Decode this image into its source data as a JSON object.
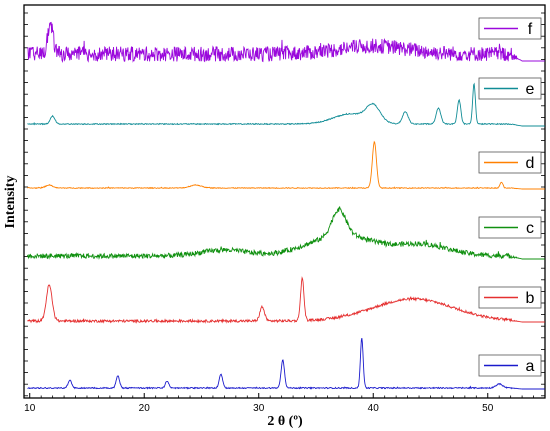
{
  "chart_data": {
    "type": "line",
    "xlabel": "2 θ (º)",
    "ylabel": "Intensity",
    "xlim": [
      9.5,
      55
    ],
    "x_ticks": [
      10,
      20,
      30,
      40,
      50
    ],
    "x_tick_labels": [
      "10",
      "20",
      "30",
      "40",
      "50"
    ],
    "grid": false,
    "legend_placement": "right of each pattern",
    "series": [
      {
        "name": "a",
        "color": "#1a1acc",
        "noise": 1.2,
        "baseline": 2,
        "end": 52,
        "peaks": [
          [
            13.5,
            8,
            0.15
          ],
          [
            17.7,
            12,
            0.15
          ],
          [
            22.0,
            7,
            0.15
          ],
          [
            26.7,
            14,
            0.15
          ],
          [
            32.1,
            28,
            0.15
          ],
          [
            39.0,
            50,
            0.12
          ],
          [
            51.0,
            4,
            0.3
          ]
        ]
      },
      {
        "name": "b",
        "color": "#e53030",
        "noise": 2.5,
        "baseline": 2,
        "end": 52,
        "peaks": [
          [
            11.7,
            36,
            0.25
          ],
          [
            30.3,
            14,
            0.2
          ],
          [
            33.8,
            42,
            0.15
          ],
          [
            43.5,
            22,
            3.5
          ]
        ]
      },
      {
        "name": "c",
        "color": "#109010",
        "noise": 5,
        "baseline": 4,
        "end": 52,
        "peaks": [
          [
            27,
            6,
            2
          ],
          [
            36,
            14,
            2.5
          ],
          [
            37.0,
            26,
            0.6
          ],
          [
            38.5,
            10,
            2
          ],
          [
            44,
            12,
            2.5
          ]
        ]
      },
      {
        "name": "d",
        "color": "#ff8000",
        "noise": 0.8,
        "baseline": 2,
        "end": 52,
        "peaks": [
          [
            11.7,
            3,
            0.3
          ],
          [
            24.5,
            3,
            0.5
          ],
          [
            40.1,
            46,
            0.18
          ],
          [
            51.2,
            6,
            0.12
          ]
        ]
      },
      {
        "name": "e",
        "color": "#108c96",
        "noise": 1,
        "baseline": 3,
        "end": 52,
        "peaks": [
          [
            12.0,
            8,
            0.2
          ],
          [
            38,
            10,
            1.5
          ],
          [
            40.0,
            16,
            0.6
          ],
          [
            42.8,
            12,
            0.25
          ],
          [
            45.7,
            16,
            0.2
          ],
          [
            47.5,
            24,
            0.15
          ],
          [
            48.8,
            40,
            0.12
          ]
        ]
      },
      {
        "name": "f",
        "color": "#9a08dc",
        "noise": 15,
        "baseline": 8,
        "end": 52,
        "peaks": [
          [
            11.8,
            28,
            0.25
          ],
          [
            40,
            8,
            3
          ]
        ]
      }
    ]
  }
}
